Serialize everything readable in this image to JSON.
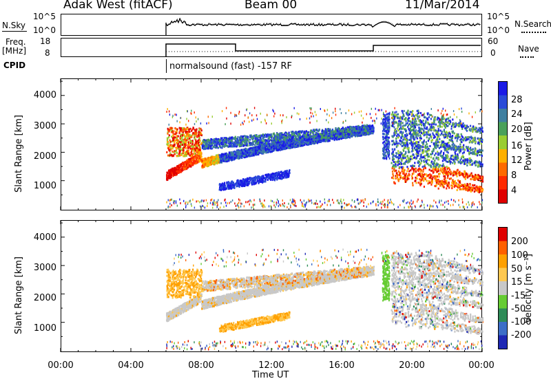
{
  "header": {
    "radar": "Adak West (fitACF)",
    "beam": "Beam 00",
    "date": "11/Mar/2014"
  },
  "status_panels": {
    "nsky_label": "N.Sky",
    "nsky_ticks": [
      "10^5",
      "10^0"
    ],
    "nsearch_label": "N.Search",
    "nsearch_ticks": [
      "10^5",
      "10^0"
    ],
    "freq_label_1": "Freq.",
    "freq_label_2": "[MHz]",
    "freq_ticks": [
      "18",
      "8"
    ],
    "nave_label": "Nave",
    "nave_ticks": [
      "60",
      "0"
    ],
    "cpid_label": "CPID",
    "cpid_text": "normalsound (fast) -157 RF"
  },
  "chart_data": [
    {
      "type": "heatmap",
      "title": "",
      "ylabel": "Slant Range [km]",
      "xlabel": "",
      "yticks": [
        "1000",
        "2000",
        "3000",
        "4000"
      ],
      "ylim": [
        0,
        4600
      ],
      "colorbar_label": "Power [dB]",
      "colorbar_ticks": [
        "4",
        "8",
        "12",
        "16",
        "20",
        "24",
        "28"
      ],
      "colorbar_colors": [
        "#1a1ae6",
        "#2a4bd8",
        "#3f7fa0",
        "#4aa05a",
        "#9acd32",
        "#ffb000",
        "#ff6a00",
        "#ff2a00",
        "#e00000"
      ]
    },
    {
      "type": "heatmap",
      "title": "",
      "ylabel": "Slant Range [km]",
      "xlabel": "Time UT",
      "yticks": [
        "1000",
        "2000",
        "3000",
        "4000"
      ],
      "ylim": [
        0,
        4600
      ],
      "xticks": [
        "00:00",
        "04:00",
        "08:00",
        "12:00",
        "16:00",
        "20:00",
        "00:00"
      ],
      "colorbar_label": "Velocity [m s⁻¹]",
      "colorbar_ticks": [
        "200",
        "100",
        "50",
        "15",
        "-15",
        "-50",
        "-100",
        "-200"
      ],
      "colorbar_colors": [
        "#1e28b4",
        "#3c6ec8",
        "#2e8b57",
        "#66cc33",
        "#c8c8c8",
        "#ffc850",
        "#ffa000",
        "#ff6000",
        "#e00000"
      ]
    }
  ]
}
